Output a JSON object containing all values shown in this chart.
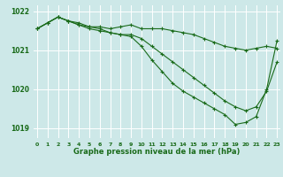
{
  "hours": [
    0,
    1,
    2,
    3,
    4,
    5,
    6,
    7,
    8,
    9,
    10,
    11,
    12,
    13,
    14,
    15,
    16,
    17,
    18,
    19,
    20,
    21,
    22,
    23
  ],
  "line1_flat": [
    1021.55,
    1021.7,
    1021.85,
    1021.75,
    1021.7,
    1021.6,
    1021.6,
    1021.55,
    1021.6,
    1021.65,
    1021.55,
    1021.55,
    1021.55,
    1021.5,
    1021.45,
    1021.4,
    1021.3,
    1021.2,
    1021.1,
    1021.05,
    1021.0,
    1021.05,
    1021.1,
    1021.05
  ],
  "line2_mid": [
    1021.55,
    1021.7,
    1021.85,
    1021.75,
    1021.65,
    1021.55,
    1021.5,
    1021.45,
    1021.4,
    1021.4,
    1021.3,
    1021.1,
    1020.9,
    1020.7,
    1020.5,
    1020.3,
    1020.1,
    1019.9,
    1019.7,
    1019.55,
    1019.45,
    1019.55,
    1019.95,
    1020.7
  ],
  "line3_steep": [
    1021.55,
    1021.7,
    1021.85,
    1021.75,
    1021.65,
    1021.6,
    1021.55,
    1021.45,
    1021.4,
    1021.35,
    1021.1,
    1020.75,
    1020.45,
    1020.15,
    1019.95,
    1019.8,
    1019.65,
    1019.5,
    1019.35,
    1019.1,
    1019.15,
    1019.3,
    1020.0,
    1021.25
  ],
  "line_color": "#1a6b1a",
  "bg_color": "#cde8e8",
  "grid_color": "#ffffff",
  "xlabel": "Graphe pression niveau de la mer (hPa)",
  "ylim": [
    1018.75,
    1022.15
  ],
  "yticks": [
    1019,
    1020,
    1021,
    1022
  ],
  "marker": "+",
  "markersize": 3,
  "linewidth": 0.8
}
